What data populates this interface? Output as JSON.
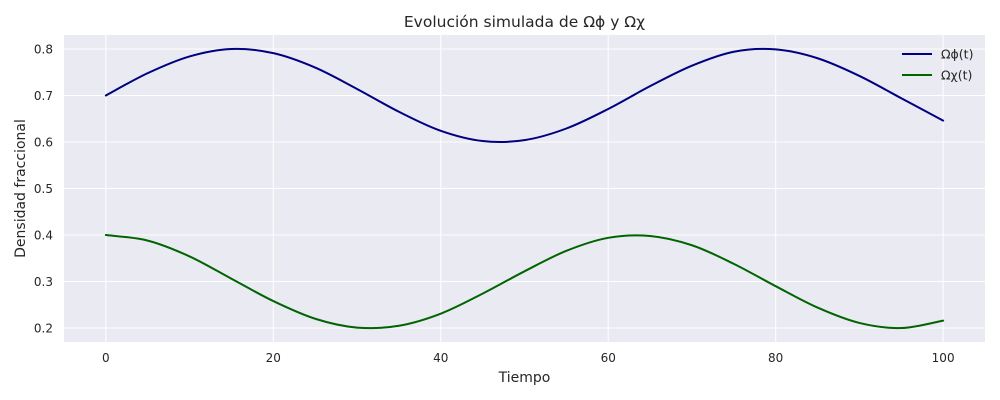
{
  "chart_data": {
    "type": "line",
    "title": "Evolución simulada de Ωϕ y Ωχ",
    "xlabel": "Tiempo",
    "ylabel": "Densidad fraccional",
    "xlim": [
      -5,
      105
    ],
    "ylim": [
      0.17,
      0.83
    ],
    "xticks": [
      0,
      20,
      40,
      60,
      80,
      100
    ],
    "yticks": [
      0.2,
      0.3,
      0.4,
      0.5,
      0.6,
      0.7,
      0.8
    ],
    "xtick_labels": [
      "0",
      "20",
      "40",
      "60",
      "80",
      "100"
    ],
    "ytick_labels": [
      "0.2",
      "0.3",
      "0.4",
      "0.5",
      "0.6",
      "0.7",
      "0.8"
    ],
    "grid": true,
    "legend_position": "top-right",
    "colors": {
      "background": "#eaeaf2",
      "grid": "#ffffff"
    },
    "series": [
      {
        "name": "Ωϕ(t)",
        "color": "#000080",
        "x": [
          0,
          5,
          10,
          15,
          20,
          25,
          30,
          35,
          40,
          45,
          50,
          55,
          60,
          65,
          70,
          75,
          80,
          85,
          90,
          95,
          100
        ],
        "y": [
          0.7,
          0.748,
          0.784,
          0.8,
          0.791,
          0.76,
          0.714,
          0.665,
          0.624,
          0.602,
          0.604,
          0.629,
          0.671,
          0.72,
          0.764,
          0.794,
          0.799,
          0.78,
          0.742,
          0.694,
          0.646
        ]
      },
      {
        "name": "Ωχ(t)",
        "color": "#006400",
        "x": [
          0,
          5,
          10,
          15,
          20,
          25,
          30,
          35,
          40,
          45,
          50,
          55,
          60,
          65,
          70,
          75,
          80,
          85,
          90,
          95,
          100
        ],
        "y": [
          0.4,
          0.388,
          0.354,
          0.306,
          0.258,
          0.22,
          0.201,
          0.205,
          0.231,
          0.274,
          0.322,
          0.366,
          0.394,
          0.398,
          0.378,
          0.338,
          0.29,
          0.244,
          0.211,
          0.2,
          0.216
        ]
      }
    ]
  }
}
